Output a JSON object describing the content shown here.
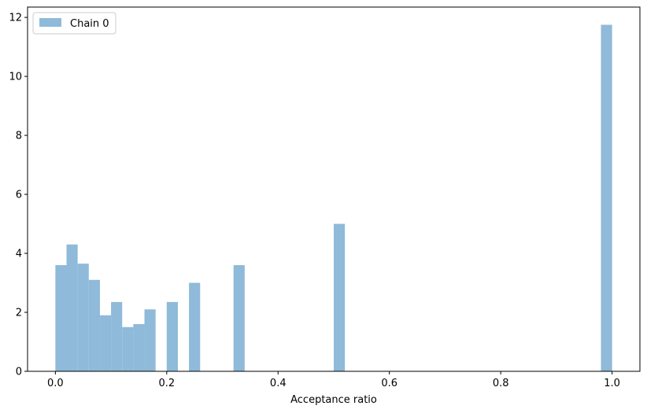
{
  "chart_data": {
    "type": "bar",
    "title": "",
    "xlabel": "Acceptance ratio",
    "ylabel": "",
    "xlim": [
      -0.05,
      1.05
    ],
    "ylim": [
      0,
      12.35
    ],
    "xticks": [
      0.0,
      0.2,
      0.4,
      0.6,
      0.8,
      1.0
    ],
    "xtick_labels": [
      "0.0",
      "0.2",
      "0.4",
      "0.6",
      "0.8",
      "1.0"
    ],
    "yticks": [
      0,
      2,
      4,
      6,
      8,
      10,
      12
    ],
    "ytick_labels": [
      "0",
      "2",
      "4",
      "6",
      "8",
      "10",
      "12"
    ],
    "grid": false,
    "legend": {
      "position": "upper-left",
      "entries": [
        {
          "label": "Chain 0",
          "color": "#8fbad9"
        }
      ]
    },
    "series": [
      {
        "name": "Chain 0",
        "color": "#8fbad9",
        "bins": [
          {
            "x0": 0.0,
            "x1": 0.02,
            "value": 3.6
          },
          {
            "x0": 0.02,
            "x1": 0.04,
            "value": 4.3
          },
          {
            "x0": 0.04,
            "x1": 0.06,
            "value": 3.65
          },
          {
            "x0": 0.06,
            "x1": 0.08,
            "value": 3.1
          },
          {
            "x0": 0.08,
            "x1": 0.1,
            "value": 1.9
          },
          {
            "x0": 0.1,
            "x1": 0.12,
            "value": 2.35
          },
          {
            "x0": 0.12,
            "x1": 0.14,
            "value": 1.5
          },
          {
            "x0": 0.14,
            "x1": 0.16,
            "value": 1.6
          },
          {
            "x0": 0.16,
            "x1": 0.18,
            "value": 2.1
          },
          {
            "x0": 0.2,
            "x1": 0.22,
            "value": 2.35
          },
          {
            "x0": 0.24,
            "x1": 0.26,
            "value": 3.0
          },
          {
            "x0": 0.32,
            "x1": 0.34,
            "value": 3.6
          },
          {
            "x0": 0.5,
            "x1": 0.52,
            "value": 5.0
          },
          {
            "x0": 0.98,
            "x1": 1.0,
            "value": 11.75
          }
        ]
      }
    ]
  }
}
